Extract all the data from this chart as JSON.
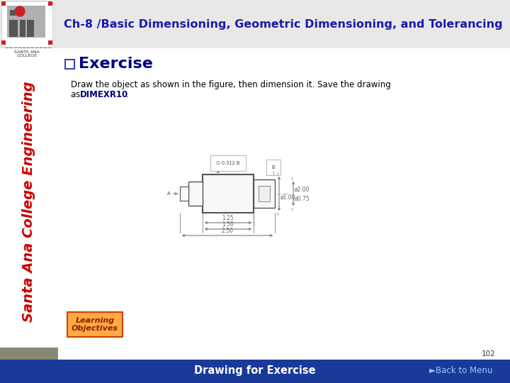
{
  "title": "Ch-8 /Basic Dimensioning, Geometric Dimensioning, and Tolerancing",
  "title_color": "#1a1aaa",
  "title_fontsize": 11.5,
  "slide_bg": "#ffffff",
  "exercise_title": "Exercise",
  "exercise_color": "#000080",
  "body_text_line1": "Draw the object as shown in the figure, then dimension it. Save the drawing",
  "body_text_line2": "as ",
  "body_text_bold": "DIMEXR10",
  "body_text_end": ".",
  "footer_text": "Drawing for Exercise",
  "footer_bg": "#1a3a99",
  "page_num": "102",
  "back_to_menu": "►Back to Menu",
  "learning_obj_text": "Learning\nObjectives",
  "learning_obj_border": "#cc4400",
  "sidebar_color": "#cc0000",
  "header_bg": "#e8e8e8",
  "checkbox_color": "#4444aa",
  "dim_color": "#666666",
  "draw_line_color": "#555555"
}
